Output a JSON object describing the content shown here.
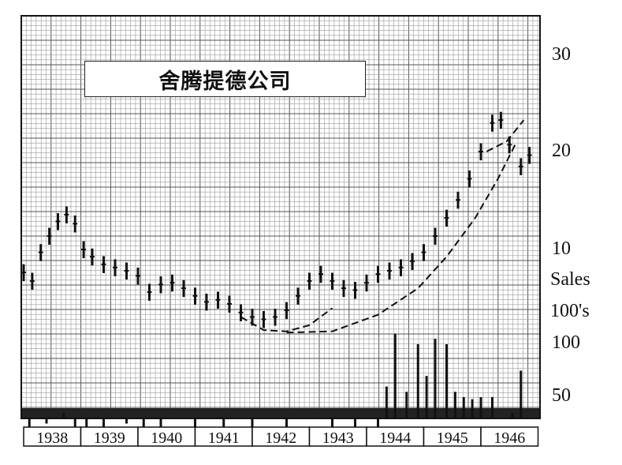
{
  "chart_data": {
    "type": "bar",
    "subtype": "price-and-volume bar chart with saucer-bottom trend curves",
    "title": "舍腾提德公司",
    "x": [
      "1938",
      "1939",
      "1940",
      "1941",
      "1942",
      "1943",
      "1944",
      "1945",
      "1946"
    ],
    "price_axis": {
      "scale": "log",
      "ylim": [
        5,
        32
      ],
      "tick_labels": [
        "30",
        "20",
        "10"
      ]
    },
    "volume_axis": {
      "label": "Sales 100's",
      "tick_labels": [
        "100",
        "50"
      ]
    },
    "grid": true,
    "right_labels": [
      "30",
      "20",
      "10",
      "Sales",
      "100's",
      "100",
      "50"
    ],
    "series": [
      {
        "kind": "price",
        "points": [
          {
            "t": 1938.0,
            "v": 8.5
          },
          {
            "t": 1938.15,
            "v": 8.0
          },
          {
            "t": 1938.3,
            "v": 9.8
          },
          {
            "t": 1938.45,
            "v": 11.0
          },
          {
            "t": 1938.6,
            "v": 12.2
          },
          {
            "t": 1938.75,
            "v": 12.8
          },
          {
            "t": 1938.9,
            "v": 12.0
          },
          {
            "t": 1939.05,
            "v": 10.0
          },
          {
            "t": 1939.2,
            "v": 9.5
          },
          {
            "t": 1939.4,
            "v": 9.0
          },
          {
            "t": 1939.6,
            "v": 8.8
          },
          {
            "t": 1939.8,
            "v": 8.6
          },
          {
            "t": 1940.0,
            "v": 8.3
          },
          {
            "t": 1940.2,
            "v": 7.4
          },
          {
            "t": 1940.4,
            "v": 7.8
          },
          {
            "t": 1940.6,
            "v": 7.9
          },
          {
            "t": 1940.8,
            "v": 7.6
          },
          {
            "t": 1941.0,
            "v": 7.2
          },
          {
            "t": 1941.2,
            "v": 6.9
          },
          {
            "t": 1941.4,
            "v": 7.0
          },
          {
            "t": 1941.6,
            "v": 6.8
          },
          {
            "t": 1941.8,
            "v": 6.4
          },
          {
            "t": 1942.0,
            "v": 6.2
          },
          {
            "t": 1942.2,
            "v": 6.1
          },
          {
            "t": 1942.4,
            "v": 6.2
          },
          {
            "t": 1942.6,
            "v": 6.5
          },
          {
            "t": 1942.8,
            "v": 7.2
          },
          {
            "t": 1943.0,
            "v": 8.0
          },
          {
            "t": 1943.2,
            "v": 8.4
          },
          {
            "t": 1943.4,
            "v": 8.0
          },
          {
            "t": 1943.6,
            "v": 7.6
          },
          {
            "t": 1943.8,
            "v": 7.5
          },
          {
            "t": 1944.0,
            "v": 7.9
          },
          {
            "t": 1944.2,
            "v": 8.4
          },
          {
            "t": 1944.4,
            "v": 8.6
          },
          {
            "t": 1944.6,
            "v": 8.8
          },
          {
            "t": 1944.8,
            "v": 9.2
          },
          {
            "t": 1945.0,
            "v": 9.8
          },
          {
            "t": 1945.2,
            "v": 11.0
          },
          {
            "t": 1945.4,
            "v": 12.5
          },
          {
            "t": 1945.6,
            "v": 14.2
          },
          {
            "t": 1945.8,
            "v": 16.5
          },
          {
            "t": 1946.0,
            "v": 20.0
          },
          {
            "t": 1946.2,
            "v": 24.5
          },
          {
            "t": 1946.35,
            "v": 25.0
          },
          {
            "t": 1946.5,
            "v": 21.0
          },
          {
            "t": 1946.7,
            "v": 18.0
          },
          {
            "t": 1946.85,
            "v": 19.5
          }
        ]
      },
      {
        "kind": "volume",
        "points": [
          {
            "t": 1938.1,
            "v": 10
          },
          {
            "t": 1938.4,
            "v": 25
          },
          {
            "t": 1938.7,
            "v": 35
          },
          {
            "t": 1938.9,
            "v": 20
          },
          {
            "t": 1939.1,
            "v": 15
          },
          {
            "t": 1939.4,
            "v": 12
          },
          {
            "t": 1939.8,
            "v": 25
          },
          {
            "t": 1940.1,
            "v": 15
          },
          {
            "t": 1940.4,
            "v": 18
          },
          {
            "t": 1941.0,
            "v": 10
          },
          {
            "t": 1941.5,
            "v": 8
          },
          {
            "t": 1942.0,
            "v": 8
          },
          {
            "t": 1942.6,
            "v": 10
          },
          {
            "t": 1943.1,
            "v": 30
          },
          {
            "t": 1943.4,
            "v": 15
          },
          {
            "t": 1943.8,
            "v": 10
          },
          {
            "t": 1944.2,
            "v": 20
          },
          {
            "t": 1944.35,
            "v": 60
          },
          {
            "t": 1944.5,
            "v": 110
          },
          {
            "t": 1944.7,
            "v": 55
          },
          {
            "t": 1944.9,
            "v": 100
          },
          {
            "t": 1945.05,
            "v": 70
          },
          {
            "t": 1945.2,
            "v": 105
          },
          {
            "t": 1945.4,
            "v": 100
          },
          {
            "t": 1945.55,
            "v": 55
          },
          {
            "t": 1945.7,
            "v": 50
          },
          {
            "t": 1945.85,
            "v": 48
          },
          {
            "t": 1946.0,
            "v": 50
          },
          {
            "t": 1946.2,
            "v": 50
          },
          {
            "t": 1946.4,
            "v": 30
          },
          {
            "t": 1946.55,
            "v": 35
          },
          {
            "t": 1946.7,
            "v": 75
          },
          {
            "t": 1946.85,
            "v": 30
          }
        ]
      }
    ],
    "trend_curves": [
      {
        "style": "dashed",
        "points": [
          {
            "t": 1941.8,
            "v": 6.2
          },
          {
            "t": 1942.2,
            "v": 5.65
          },
          {
            "t": 1942.6,
            "v": 5.6
          },
          {
            "t": 1943.0,
            "v": 5.85
          },
          {
            "t": 1943.4,
            "v": 6.6
          }
        ]
      },
      {
        "style": "dashed",
        "points": [
          {
            "t": 1942.6,
            "v": 5.55
          },
          {
            "t": 1943.4,
            "v": 5.6
          },
          {
            "t": 1944.2,
            "v": 6.3
          },
          {
            "t": 1944.9,
            "v": 7.6
          },
          {
            "t": 1945.4,
            "v": 9.5
          },
          {
            "t": 1945.9,
            "v": 12.5
          },
          {
            "t": 1946.3,
            "v": 16.5
          },
          {
            "t": 1946.6,
            "v": 21.0
          }
        ]
      },
      {
        "style": "dashed",
        "points": [
          {
            "t": 1946.1,
            "v": 20.0
          },
          {
            "t": 1946.45,
            "v": 21.5
          },
          {
            "t": 1946.75,
            "v": 25.0
          }
        ]
      }
    ]
  }
}
